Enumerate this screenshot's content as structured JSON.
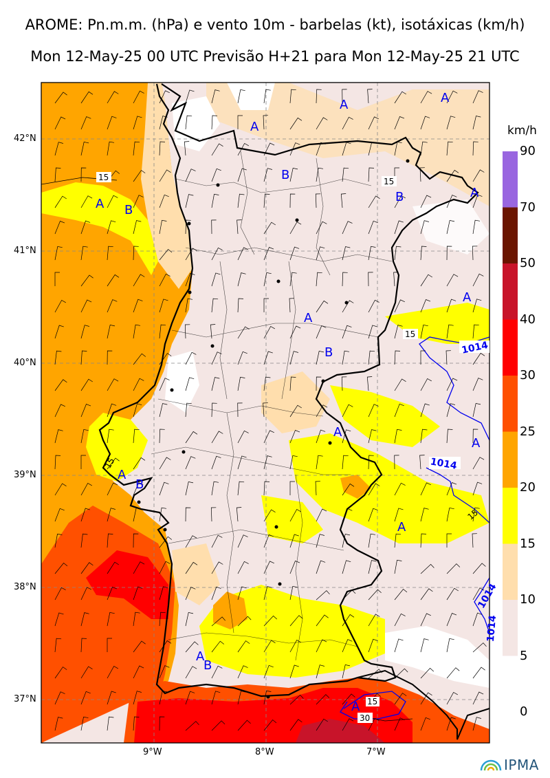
{
  "header": {
    "title": "AROME: Pn.m.m. (hPa) e vento 10m - barbelas (kt), isotáxicas (km/h)",
    "subtitle": "Mon 12-May-25 00 UTC Previsão H+21 para Mon 12-May-25 21 UTC"
  },
  "map": {
    "latitudes": [
      "42°N",
      "41°N",
      "40°N",
      "39°N",
      "38°N",
      "37°N"
    ],
    "longitudes": [
      "9°W",
      "8°W",
      "7°W"
    ],
    "pressure_labels": [
      "1014",
      "1014",
      "1014",
      "1014"
    ],
    "isotach_labels": [
      "15",
      "15",
      "15",
      "15",
      "15",
      "15",
      "30"
    ],
    "high_marker": "A",
    "low_marker": "B"
  },
  "colorbar": {
    "unit": "km/h",
    "levels": [
      "90",
      "70",
      "50",
      "40",
      "30",
      "25",
      "20",
      "15",
      "10",
      "5",
      "0"
    ],
    "colors": [
      "#9966e0",
      "#6b1500",
      "#c8142a",
      "#ff0000",
      "#ff5000",
      "#ffa500",
      "#ffff00",
      "#ffdead",
      "#f4e6e4"
    ],
    "below_colorbar_color": "#ffffff"
  },
  "footer": {
    "logo_text": "IPMA",
    "logo_color": "#24557a"
  }
}
